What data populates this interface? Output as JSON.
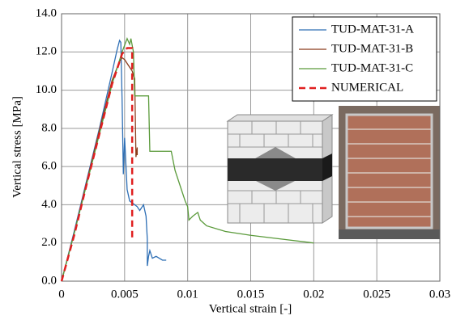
{
  "chart_data": {
    "type": "line",
    "x_label": "Vertical strain [-]",
    "y_label": "Vertical stress [MPa]",
    "xlim": [
      0,
      0.03
    ],
    "xticks": [
      0,
      0.005,
      0.01,
      0.015,
      0.02,
      0.025,
      0.03
    ],
    "ylim": [
      0,
      14
    ],
    "yticks": [
      {
        "value": 0,
        "label": "0.0"
      },
      {
        "value": 2,
        "label": "2.0"
      },
      {
        "value": 4,
        "label": "4.0"
      },
      {
        "value": 6,
        "label": "6.0"
      },
      {
        "value": 8,
        "label": "8.0"
      },
      {
        "value": 10,
        "label": "10.0"
      },
      {
        "value": 12,
        "label": "12.0"
      },
      {
        "value": 14,
        "label": "14.0"
      }
    ],
    "grid": true,
    "legend": "upper right",
    "series": [
      {
        "name": "TUD-MAT-31-A",
        "color": "#2e6fb5",
        "dashed": false,
        "x": [
          0,
          0.001,
          0.002,
          0.003,
          0.004,
          0.0044,
          0.0046,
          0.0047,
          0.0048,
          0.0049,
          0.005,
          0.0052,
          0.0054,
          0.0056,
          0.006,
          0.0062,
          0.0065,
          0.0067,
          0.0068,
          0.0068,
          0.0069,
          0.007,
          0.0072,
          0.0075,
          0.008,
          0.0083
        ],
        "values": [
          0,
          2.6,
          5.3,
          8.0,
          10.9,
          12.1,
          12.6,
          12.5,
          9.5,
          5.6,
          7.5,
          4.8,
          4.2,
          4.1,
          3.9,
          3.7,
          4.0,
          3.4,
          2.2,
          0.8,
          1.3,
          1.6,
          1.2,
          1.3,
          1.1,
          1.1
        ]
      },
      {
        "name": "TUD-MAT-31-B",
        "color": "#8b3a1a",
        "dashed": false,
        "x": [
          0,
          0.001,
          0.002,
          0.003,
          0.004,
          0.0046,
          0.0048,
          0.005,
          0.0053,
          0.0056,
          0.0058,
          0.0059,
          0.006,
          0.006
        ],
        "values": [
          0,
          2.5,
          5.2,
          7.9,
          10.5,
          11.5,
          11.7,
          11.6,
          11.3,
          11.0,
          10.6,
          6.5,
          7.0,
          6.6
        ]
      },
      {
        "name": "TUD-MAT-31-C",
        "color": "#5a9a3a",
        "dashed": false,
        "x": [
          0,
          0.001,
          0.002,
          0.003,
          0.004,
          0.0048,
          0.0052,
          0.0054,
          0.0055,
          0.0057,
          0.0058,
          0.0063,
          0.0069,
          0.007,
          0.0078,
          0.0087,
          0.009,
          0.0095,
          0.0098,
          0.01,
          0.0101,
          0.0104,
          0.0108,
          0.011,
          0.0115,
          0.013,
          0.015,
          0.0175,
          0.02
        ],
        "values": [
          0,
          2.5,
          5.1,
          7.7,
          10.3,
          12.0,
          12.7,
          12.4,
          12.7,
          12.0,
          9.7,
          9.7,
          9.7,
          6.8,
          6.8,
          6.8,
          5.8,
          4.8,
          4.2,
          3.9,
          3.2,
          3.4,
          3.6,
          3.2,
          2.9,
          2.6,
          2.4,
          2.2,
          2.0
        ]
      },
      {
        "name": "NUMERICAL",
        "color": "#e02020",
        "dashed": true,
        "x": [
          0,
          0.001,
          0.002,
          0.003,
          0.004,
          0.0048,
          0.0052,
          0.0056,
          0.0056
        ],
        "values": [
          0,
          2.4,
          5.1,
          7.7,
          10.3,
          11.9,
          12.2,
          12.2,
          2.2
        ]
      }
    ]
  }
}
